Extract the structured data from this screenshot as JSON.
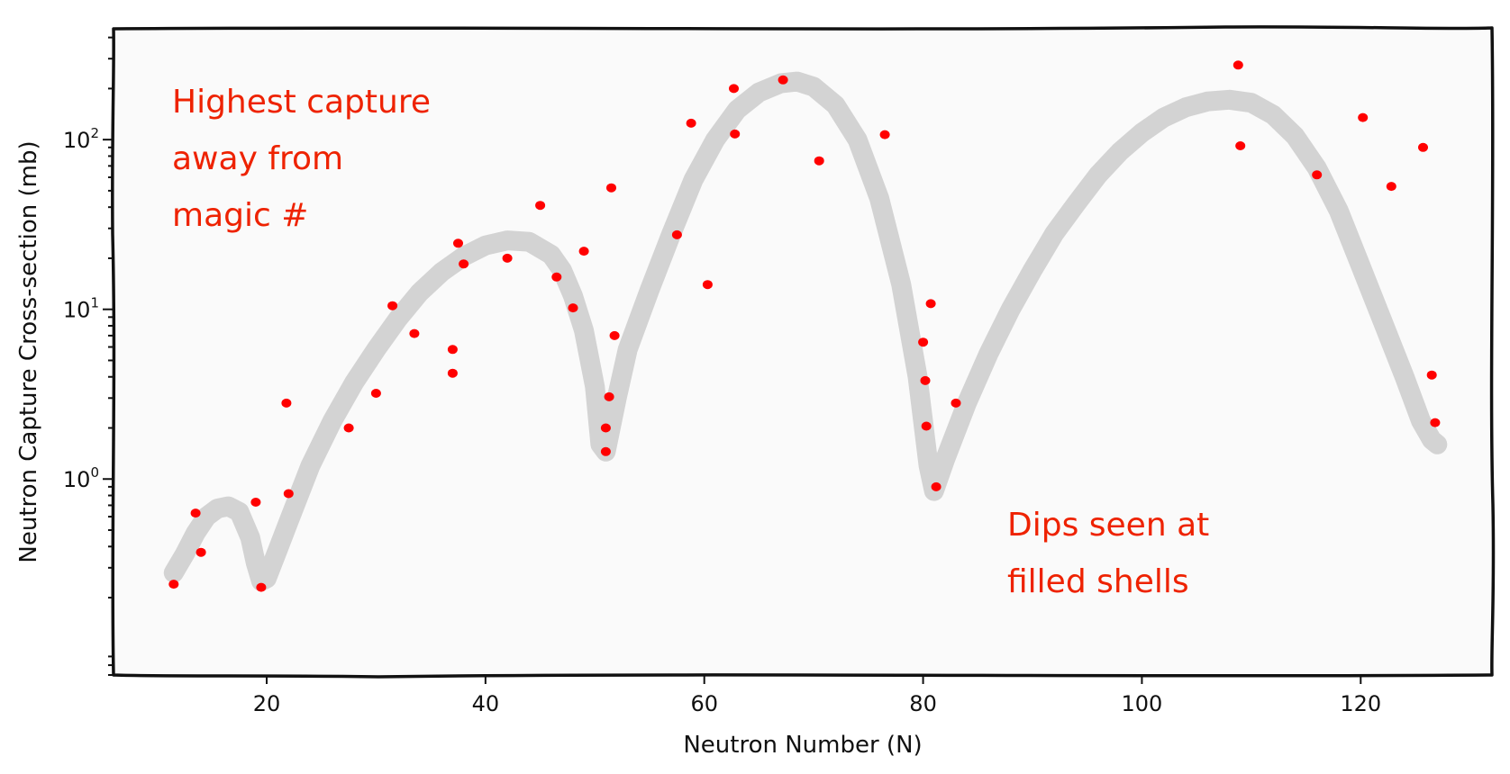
{
  "chart_data": {
    "type": "scatter",
    "title": "",
    "xlabel": "Neutron Number (N)",
    "ylabel": "Neutron Capture Cross-section (mb)",
    "xlim": [
      6,
      132
    ],
    "ylim": [
      0.07,
      450
    ],
    "yscale": "log",
    "grid": false,
    "x_ticks": [
      20,
      40,
      60,
      80,
      100,
      120
    ],
    "y_ticks": [
      {
        "value": 1,
        "base": "10",
        "exp": "0"
      },
      {
        "value": 10,
        "base": "10",
        "exp": "1"
      },
      {
        "value": 100,
        "base": "10",
        "exp": "2"
      }
    ],
    "series": [
      {
        "color": "#ff0000",
        "x": [
          11.5,
          13.5,
          14,
          19,
          19.5,
          21.8,
          22,
          27.5,
          30,
          31.5,
          33.5,
          37,
          37,
          37.5,
          38,
          42,
          45,
          46.5,
          48,
          49,
          51,
          51,
          51.3,
          51.5,
          51.8,
          57.5,
          58.8,
          60.3,
          62.7,
          62.8,
          67.2,
          70.5,
          76.5,
          80,
          80.2,
          80.3,
          80.7,
          81.2,
          83,
          108.8,
          109,
          116,
          120.2,
          122.8,
          125.7,
          126.5,
          126.8
        ],
        "y": [
          0.24,
          0.63,
          0.37,
          0.73,
          0.23,
          2.8,
          0.82,
          2.0,
          3.2,
          10.5,
          7.2,
          5.8,
          4.2,
          24.5,
          18.5,
          20.0,
          41.0,
          15.5,
          10.2,
          22.0,
          2.0,
          1.45,
          3.05,
          52.0,
          7.0,
          27.5,
          125.0,
          14.0,
          200.0,
          108.0,
          225.0,
          75.0,
          107.0,
          6.4,
          3.8,
          2.05,
          10.8,
          0.9,
          2.8,
          275.0,
          92.0,
          62.0,
          135.0,
          53.0,
          90.0,
          4.1,
          2.15
        ]
      },
      {
        "color": "#d3d3d3",
        "x": [
          11.5,
          12.5,
          13.5,
          14.5,
          15.5,
          16.5,
          17.5,
          18.5,
          19,
          19.5,
          20,
          21,
          22,
          24,
          26,
          28,
          30,
          32,
          34,
          36,
          38,
          40,
          42,
          44,
          46,
          47,
          48,
          49,
          50,
          50.5,
          51,
          52,
          53,
          55,
          57,
          59,
          61,
          63,
          65,
          67,
          68.5,
          70,
          72,
          74,
          76,
          78,
          79.5,
          80.5,
          81,
          82,
          84,
          86,
          88,
          90,
          92,
          94,
          96,
          98,
          100,
          102,
          104,
          106,
          108,
          110,
          112,
          114,
          116,
          118,
          120,
          122,
          124,
          125.5,
          126.5,
          127
        ],
        "y": [
          0.28,
          0.36,
          0.48,
          0.6,
          0.67,
          0.69,
          0.64,
          0.45,
          0.32,
          0.25,
          0.26,
          0.38,
          0.56,
          1.2,
          2.2,
          3.7,
          5.8,
          8.8,
          12.6,
          16.6,
          20.5,
          23.8,
          25.5,
          25.0,
          21.0,
          17.0,
          12.0,
          7.5,
          3.5,
          1.6,
          1.45,
          3.0,
          5.8,
          13.0,
          28.0,
          58.0,
          100.0,
          150.0,
          190.0,
          215.0,
          220.0,
          205.0,
          160.0,
          100.0,
          45.0,
          14.0,
          4.0,
          1.2,
          0.85,
          1.3,
          2.8,
          5.5,
          10.0,
          17.0,
          28.0,
          42.0,
          62.0,
          85.0,
          110.0,
          135.0,
          155.0,
          168.0,
          172.0,
          165.0,
          140.0,
          105.0,
          68.0,
          38.0,
          18.0,
          8.5,
          4.0,
          2.2,
          1.7,
          1.6
        ]
      }
    ],
    "annotations": [
      {
        "lines": [
          "Highest capture",
          "away from",
          "magic #"
        ],
        "anchor": "upper-left"
      },
      {
        "lines": [
          "Dips seen at",
          "filled shells"
        ],
        "anchor": "lower-right"
      }
    ]
  }
}
